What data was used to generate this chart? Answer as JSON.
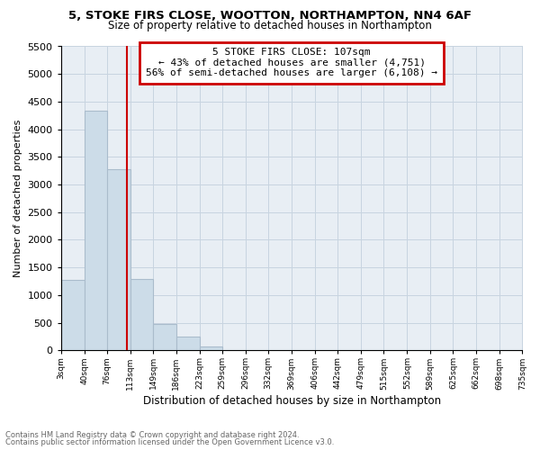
{
  "title1": "5, STOKE FIRS CLOSE, WOOTTON, NORTHAMPTON, NN4 6AF",
  "title2": "Size of property relative to detached houses in Northampton",
  "xlabel": "Distribution of detached houses by size in Northampton",
  "ylabel": "Number of detached properties",
  "bar_color": "#ccdce8",
  "bar_edgecolor": "#aabccc",
  "vline_x": 107,
  "vline_color": "#cc0000",
  "bin_edges": [
    3,
    40,
    76,
    113,
    149,
    186,
    223,
    259,
    296,
    332,
    369,
    406,
    442,
    479,
    515,
    552,
    589,
    625,
    662,
    698,
    735
  ],
  "bar_heights": [
    1270,
    4330,
    3280,
    1290,
    480,
    240,
    75,
    0,
    0,
    0,
    0,
    0,
    0,
    0,
    0,
    0,
    0,
    0,
    0,
    0
  ],
  "ylim": [
    0,
    5500
  ],
  "yticks": [
    0,
    500,
    1000,
    1500,
    2000,
    2500,
    3000,
    3500,
    4000,
    4500,
    5000,
    5500
  ],
  "annotation_title": "5 STOKE FIRS CLOSE: 107sqm",
  "annotation_line1": "← 43% of detached houses are smaller (4,751)",
  "annotation_line2": "56% of semi-detached houses are larger (6,108) →",
  "annotation_box_color": "#ffffff",
  "annotation_box_edgecolor": "#cc0000",
  "footer1": "Contains HM Land Registry data © Crown copyright and database right 2024.",
  "footer2": "Contains public sector information licensed under the Open Government Licence v3.0.",
  "tick_labels": [
    "3sqm",
    "40sqm",
    "76sqm",
    "113sqm",
    "149sqm",
    "186sqm",
    "223sqm",
    "259sqm",
    "296sqm",
    "332sqm",
    "369sqm",
    "406sqm",
    "442sqm",
    "479sqm",
    "515sqm",
    "552sqm",
    "589sqm",
    "625sqm",
    "662sqm",
    "698sqm",
    "735sqm"
  ],
  "bg_color": "#e8eef4"
}
